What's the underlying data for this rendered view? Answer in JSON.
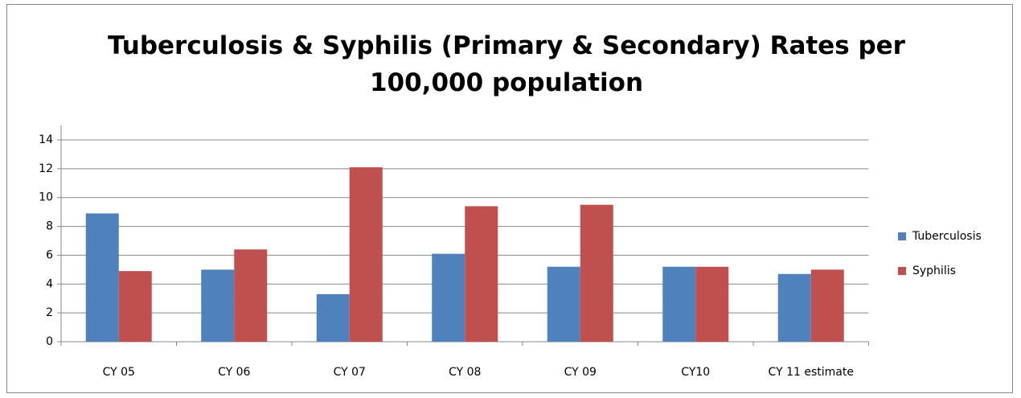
{
  "chart_data": {
    "type": "bar",
    "title": "Tuberculosis & Syphilis (Primary & Secondary) Rates per 100,000 population",
    "categories": [
      "CY 05",
      "CY 06",
      "CY 07",
      "CY 08",
      "CY 09",
      "CY10",
      "CY 11 estimate"
    ],
    "series": [
      {
        "name": "Tuberculosis",
        "color": "#4f81bd",
        "values": [
          8.9,
          5.0,
          3.3,
          6.1,
          5.2,
          5.2,
          4.7
        ]
      },
      {
        "name": "Syphilis",
        "color": "#c0504d",
        "values": [
          4.9,
          6.4,
          12.1,
          9.4,
          9.5,
          5.2,
          5.0
        ]
      }
    ],
    "ylim": [
      0,
      14
    ],
    "yticks": [
      0,
      2,
      4,
      6,
      8,
      10,
      12,
      14
    ],
    "grid": true,
    "legend": "right"
  }
}
